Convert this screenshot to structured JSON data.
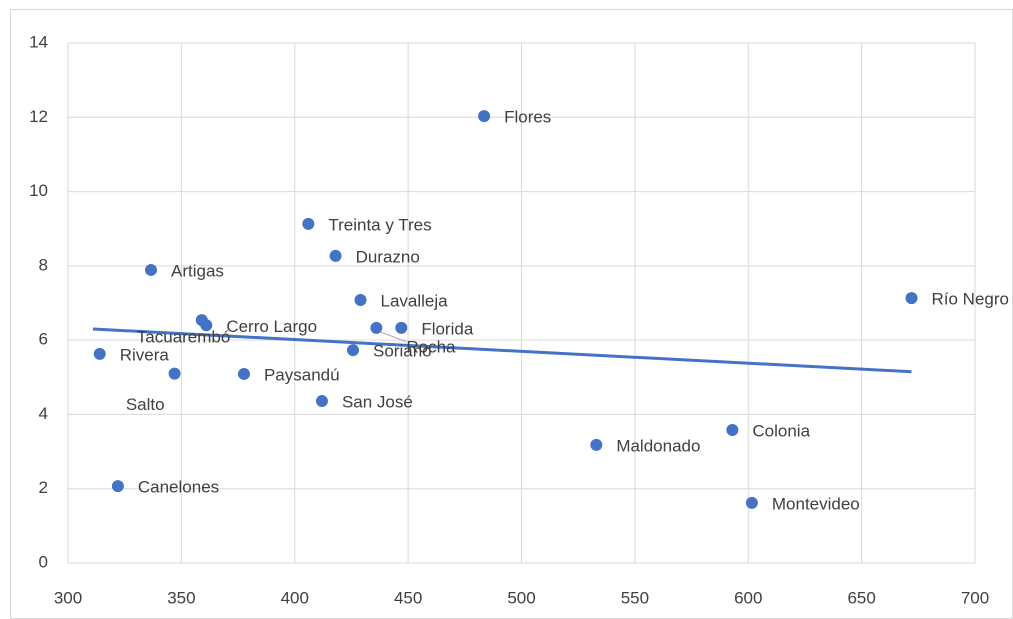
{
  "chart_data": {
    "type": "scatter",
    "labels": [
      "Flores",
      "Treinta y Tres",
      "Durazno",
      "Artigas",
      "Lavalleja",
      "Río Negro",
      "Florida",
      "Rocha",
      "Cerro Largo",
      "Tacuarembó",
      "Rivera",
      "Soriano",
      "Salto",
      "Paysandú",
      "San José",
      "Maldonado",
      "Colonia",
      "Montevideo",
      "Canelones"
    ],
    "x": [
      483.5,
      406,
      418,
      336.6,
      429,
      672,
      447,
      436,
      361,
      359,
      314,
      425.7,
      347,
      377.6,
      412,
      533,
      593,
      601.6,
      322
    ],
    "values": [
      12.03,
      9.13,
      8.27,
      7.89,
      7.08,
      7.13,
      6.33,
      6.33,
      6.4,
      6.54,
      5.63,
      5.73,
      5.1,
      5.09,
      4.36,
      3.18,
      3.58,
      1.62,
      2.07
    ],
    "color": "#4472c4",
    "trendline": {
      "x": [
        311,
        672
      ],
      "values": [
        6.3,
        5.15
      ],
      "color": "#4472c4"
    },
    "xlim": [
      300,
      700
    ],
    "xticks": [
      300,
      350,
      400,
      450,
      500,
      550,
      600,
      650,
      700
    ],
    "ylim": [
      0,
      14
    ],
    "yticks": [
      0,
      2,
      4,
      6,
      8,
      10,
      12,
      14
    ],
    "grid": true
  }
}
